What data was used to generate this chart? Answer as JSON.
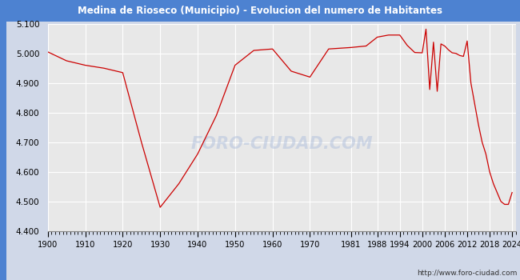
{
  "title": "Medina de Rioseco (Municipio) - Evolucion del numero de Habitantes",
  "title_bg": "#4d82d1",
  "title_color": "white",
  "url_text": "http://www.foro-ciudad.com",
  "watermark": "FORO-CIUDAD.COM",
  "line_color": "#cc0000",
  "outer_bg": "#d0d8e8",
  "plot_bg": "#e8e8e8",
  "grid_color": "white",
  "ylim": [
    4400,
    5100
  ],
  "yticks": [
    4400,
    4500,
    4600,
    4700,
    4800,
    4900,
    5000,
    5100
  ],
  "ytick_labels": [
    "4.400",
    "4.500",
    "4.600",
    "4.700",
    "4.800",
    "4.900",
    "5.000",
    "5.100"
  ],
  "xtick_positions": [
    1900,
    1910,
    1920,
    1930,
    1940,
    1950,
    1960,
    1970,
    1981,
    1988,
    1994,
    2000,
    2006,
    2012,
    2018,
    2024
  ],
  "xtick_labels": [
    "1900",
    "1910",
    "1920",
    "1930",
    "1940",
    "1950",
    "1960",
    "1970",
    "1981",
    "1988",
    "1994",
    "2000",
    "2006",
    "2012",
    "2018",
    "2024"
  ],
  "data": [
    [
      1900,
      5005
    ],
    [
      1905,
      4975
    ],
    [
      1910,
      4960
    ],
    [
      1915,
      4950
    ],
    [
      1920,
      4935
    ],
    [
      1925,
      4700
    ],
    [
      1930,
      4480
    ],
    [
      1935,
      4560
    ],
    [
      1940,
      4660
    ],
    [
      1945,
      4790
    ],
    [
      1950,
      4960
    ],
    [
      1955,
      5010
    ],
    [
      1960,
      5015
    ],
    [
      1965,
      4940
    ],
    [
      1970,
      4920
    ],
    [
      1975,
      5015
    ],
    [
      1981,
      5020
    ],
    [
      1985,
      5025
    ],
    [
      1988,
      5055
    ],
    [
      1991,
      5062
    ],
    [
      1994,
      5062
    ],
    [
      1996,
      5027
    ],
    [
      1998,
      5003
    ],
    [
      2000,
      5002
    ],
    [
      2001,
      5082
    ],
    [
      2002,
      4878
    ],
    [
      2003,
      5038
    ],
    [
      2004,
      4872
    ],
    [
      2005,
      5032
    ],
    [
      2006,
      5025
    ],
    [
      2007,
      5012
    ],
    [
      2008,
      5002
    ],
    [
      2009,
      5000
    ],
    [
      2010,
      4993
    ],
    [
      2011,
      4990
    ],
    [
      2012,
      5042
    ],
    [
      2013,
      4900
    ],
    [
      2014,
      4830
    ],
    [
      2015,
      4760
    ],
    [
      2016,
      4700
    ],
    [
      2017,
      4660
    ],
    [
      2018,
      4600
    ],
    [
      2019,
      4560
    ],
    [
      2020,
      4530
    ],
    [
      2021,
      4500
    ],
    [
      2022,
      4490
    ],
    [
      2023,
      4490
    ],
    [
      2024,
      4530
    ]
  ]
}
